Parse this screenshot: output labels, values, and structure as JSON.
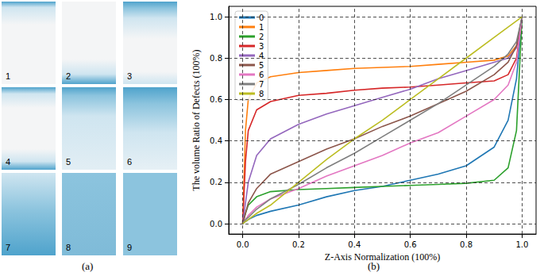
{
  "panel_a": {
    "caption": "(a)",
    "panels": [
      "1",
      "2",
      "3",
      "4",
      "5",
      "6",
      "7",
      "8",
      "9"
    ]
  },
  "chart_data": {
    "type": "line",
    "caption": "(b)",
    "x_label": "Z-Axis Normalization (100%)",
    "y_label": "The volume Ratio of Defects (100%)",
    "x": [
      0,
      0.01,
      0.02,
      0.05,
      0.1,
      0.2,
      0.3,
      0.4,
      0.5,
      0.6,
      0.7,
      0.8,
      0.9,
      0.95,
      0.98,
      1.0
    ],
    "series": [
      {
        "name": "0",
        "color": "#1f77b4",
        "values": [
          0,
          0.01,
          0.02,
          0.04,
          0.06,
          0.09,
          0.13,
          0.16,
          0.18,
          0.21,
          0.24,
          0.28,
          0.37,
          0.5,
          0.7,
          1.0
        ]
      },
      {
        "name": "1",
        "color": "#ff7f0e",
        "values": [
          0,
          0.45,
          0.6,
          0.68,
          0.71,
          0.73,
          0.74,
          0.75,
          0.755,
          0.76,
          0.77,
          0.78,
          0.79,
          0.81,
          0.86,
          1.0
        ]
      },
      {
        "name": "2",
        "color": "#2ca02c",
        "values": [
          0,
          0.05,
          0.09,
          0.13,
          0.155,
          0.165,
          0.17,
          0.175,
          0.18,
          0.185,
          0.19,
          0.195,
          0.21,
          0.27,
          0.45,
          1.0
        ]
      },
      {
        "name": "3",
        "color": "#d62728",
        "values": [
          0,
          0.3,
          0.45,
          0.55,
          0.59,
          0.62,
          0.63,
          0.645,
          0.655,
          0.66,
          0.67,
          0.68,
          0.69,
          0.72,
          0.8,
          1.0
        ]
      },
      {
        "name": "4",
        "color": "#9467bd",
        "values": [
          0,
          0.1,
          0.2,
          0.33,
          0.41,
          0.48,
          0.53,
          0.57,
          0.61,
          0.65,
          0.7,
          0.74,
          0.78,
          0.8,
          0.85,
          1.0
        ]
      },
      {
        "name": "5",
        "color": "#8c564b",
        "values": [
          0,
          0.05,
          0.1,
          0.17,
          0.24,
          0.3,
          0.36,
          0.41,
          0.47,
          0.52,
          0.58,
          0.64,
          0.72,
          0.78,
          0.86,
          1.0
        ]
      },
      {
        "name": "6",
        "color": "#e377c2",
        "values": [
          0,
          0.02,
          0.04,
          0.08,
          0.12,
          0.17,
          0.23,
          0.28,
          0.33,
          0.39,
          0.44,
          0.52,
          0.6,
          0.67,
          0.78,
          1.0
        ]
      },
      {
        "name": "7",
        "color": "#7f7f7f",
        "values": [
          0,
          0.02,
          0.03,
          0.07,
          0.12,
          0.19,
          0.27,
          0.34,
          0.42,
          0.5,
          0.58,
          0.67,
          0.76,
          0.82,
          0.88,
          1.0
        ]
      },
      {
        "name": "8",
        "color": "#bcbd22",
        "values": [
          0,
          0.01,
          0.02,
          0.05,
          0.09,
          0.2,
          0.31,
          0.41,
          0.5,
          0.6,
          0.7,
          0.8,
          0.9,
          0.95,
          0.98,
          1.0
        ]
      }
    ],
    "xlim": [
      -0.05,
      1.05
    ],
    "ylim": [
      -0.05,
      1.05
    ],
    "xticks": [
      {
        "value": 0,
        "label": "0.0"
      },
      {
        "value": 0.2,
        "label": "0.2"
      },
      {
        "value": 0.4,
        "label": "0.4"
      },
      {
        "value": 0.6,
        "label": "0.6"
      },
      {
        "value": 0.8,
        "label": "0.8"
      },
      {
        "value": 1.0,
        "label": "1.0"
      }
    ],
    "yticks": [
      {
        "value": 0,
        "label": "0.0"
      },
      {
        "value": 0.2,
        "label": "0.2"
      },
      {
        "value": 0.4,
        "label": "0.4"
      },
      {
        "value": 0.6,
        "label": "0.6"
      },
      {
        "value": 0.8,
        "label": "0.8"
      },
      {
        "value": 1.0,
        "label": "1.0"
      }
    ],
    "grid": true,
    "legend": "upper left"
  }
}
